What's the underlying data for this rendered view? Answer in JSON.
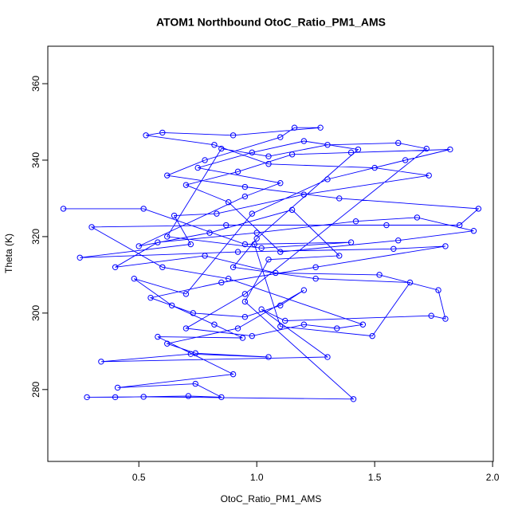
{
  "chart_data": {
    "type": "line",
    "title": "ATOM1 Northbound OtoC_Ratio_PM1_AMS",
    "x_label": "OtoC_Ratio_PM1_AMS",
    "y_label": "Theta (K)",
    "color": "#0000ff",
    "markers": true,
    "grid": false,
    "xlim": [
      0.114,
      2.003
    ],
    "ylim": [
      261.2,
      369.8
    ],
    "xticks": [
      0.5,
      {
        "value": 1.0,
        "label": "1.0"
      },
      1.5,
      {
        "value": 2.0,
        "label": "2.0"
      }
    ],
    "yticks": [
      280,
      300,
      320,
      340,
      360
    ],
    "x": [
      0.18,
      0.52,
      0.95,
      1.4,
      1.02,
      0.62,
      0.85,
      1.05,
      1.3,
      1.6,
      1.72,
      0.95,
      0.7,
      0.98,
      1.2,
      1.34,
      1.45,
      0.88,
      0.6,
      0.3,
      0.87,
      1.55,
      1.86,
      1.94,
      1.35,
      0.95,
      0.62,
      0.78,
      1.1,
      1.16,
      1.27,
      0.9,
      0.6,
      0.53,
      0.82,
      1.05,
      1.5,
      1.73,
      1.2,
      0.83,
      0.65,
      0.72,
      0.25,
      0.92,
      1.58,
      1.8,
      1.25,
      0.85,
      0.55,
      0.73,
      0.95,
      1.1,
      1.2,
      0.92,
      0.62,
      0.74,
      1.05,
      0.72,
      0.34,
      1.3,
      1.02,
      1.12,
      1.74,
      1.8,
      1.77,
      1.52,
      1.08,
      0.78,
      0.4,
      0.58,
      1.0,
      1.42,
      1.68,
      1.92,
      1.6,
      1.1,
      0.88,
      0.7,
      0.92,
      1.15,
      1.4,
      1.82,
      1.63,
      1.3,
      0.98,
      0.7,
      0.48,
      0.64,
      0.82,
      0.94,
      0.58,
      0.9,
      0.41,
      0.74,
      0.85,
      0.71,
      0.4,
      0.28,
      0.52,
      1.41,
      0.95,
      1.05,
      1.35,
      1.15,
      0.8,
      0.5,
      0.95,
      1.1,
      0.75,
      0.98,
      1.2,
      1.43,
      1.0,
      0.9,
      1.25,
      1.65,
      1.49,
      1.1,
      0.99
    ],
    "values": [
      327.3,
      327.3,
      318,
      318.5,
      317,
      320,
      343,
      341,
      344,
      344.5,
      343,
      305,
      296,
      294,
      297,
      296,
      297,
      309,
      312,
      322.5,
      323,
      323,
      323,
      327.3,
      330,
      333,
      336,
      340,
      346,
      348.5,
      348.5,
      346.5,
      347.2,
      346.5,
      344,
      339,
      338,
      336,
      331,
      326,
      325.5,
      318,
      314.5,
      316,
      316.8,
      317.5,
      312,
      308,
      304,
      300,
      299,
      302,
      306,
      296,
      292,
      289.5,
      288.5,
      289.3,
      287.3,
      288.5,
      301,
      298,
      299.3,
      298.5,
      306,
      310,
      310.5,
      315,
      312,
      318.5,
      321,
      324,
      325,
      321.5,
      319,
      316,
      329,
      333.5,
      337,
      341.5,
      342,
      342.8,
      340,
      335,
      326,
      305,
      309,
      302,
      297,
      293.5,
      293.8,
      284,
      280.5,
      281.5,
      278,
      278.3,
      278,
      278,
      278.1,
      277.5,
      303,
      314,
      315,
      327,
      321,
      317.5,
      330.5,
      334,
      338,
      342,
      345,
      342.8,
      319.5,
      312,
      309,
      308,
      294,
      296.5,
      318
    ]
  }
}
